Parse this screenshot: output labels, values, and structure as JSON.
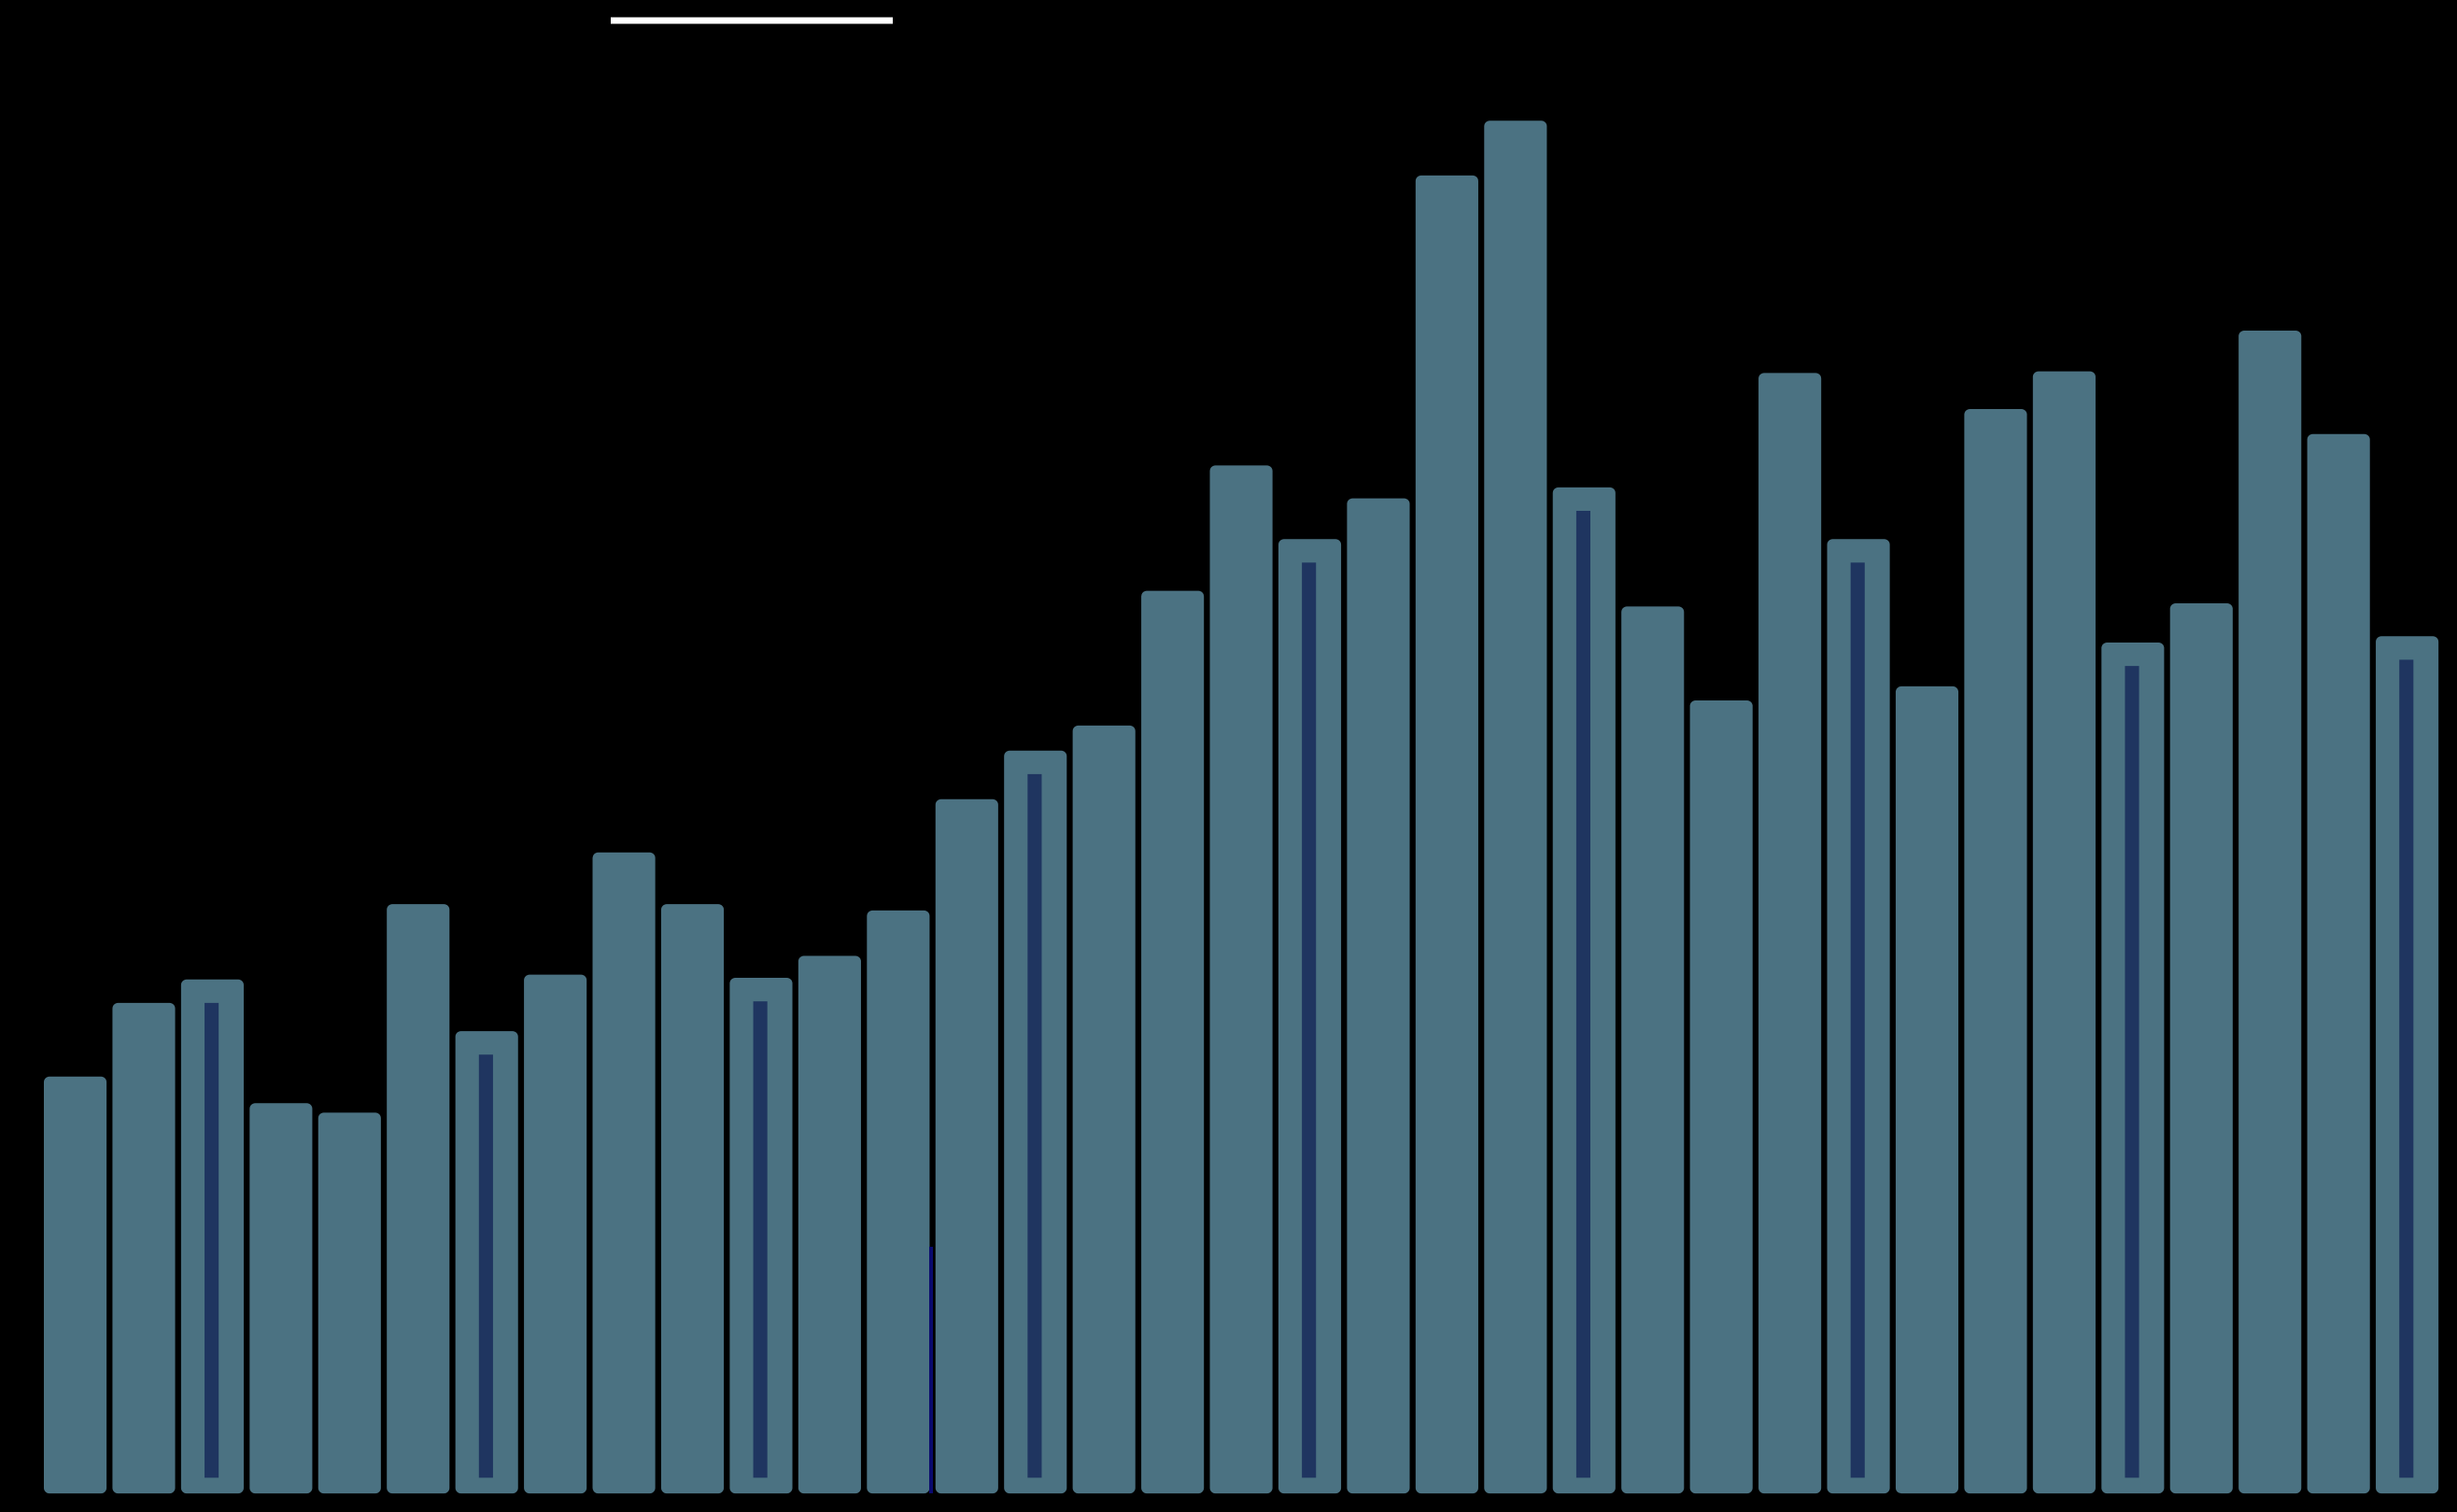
{
  "chart_data": {
    "type": "bar",
    "values": [
      266,
      313,
      328,
      249,
      243,
      376,
      295,
      331,
      409,
      376,
      329,
      343,
      372,
      443,
      474,
      490,
      576,
      656,
      609,
      635,
      841,
      876,
      642,
      566,
      506,
      715,
      609,
      515,
      692,
      716,
      543,
      568,
      742,
      676,
      547
    ],
    "color": "#4b7282",
    "highlight_color": "#1f3560",
    "highlighted": [
      2,
      6,
      10,
      14,
      18,
      22,
      26,
      30,
      34
    ],
    "background": "#000000"
  }
}
